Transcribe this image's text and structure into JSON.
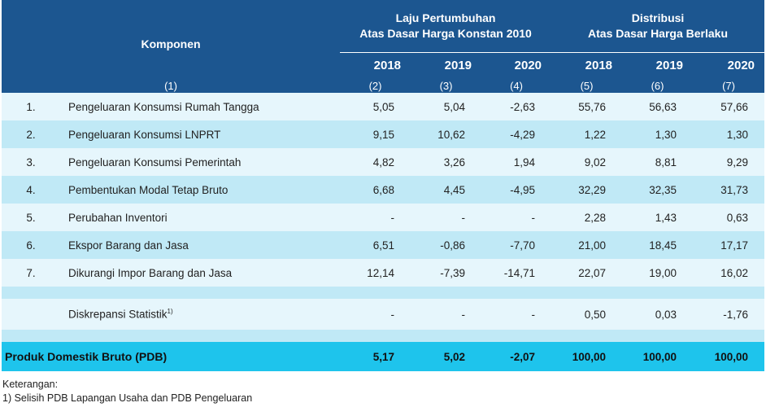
{
  "header": {
    "component": "Komponen",
    "group1_line1": "Laju Pertumbuhan",
    "group1_line2": "Atas Dasar Harga Konstan 2010",
    "group2_line1": "Distribusi",
    "group2_line2": "Atas Dasar Harga Berlaku",
    "years": [
      "2018",
      "2019",
      "2020",
      "2018",
      "2019",
      "2020"
    ],
    "col_numbers": [
      "(1)",
      "(2)",
      "(3)",
      "(4)",
      "(5)",
      "(6)",
      "(7)"
    ]
  },
  "rows": [
    {
      "no": "1.",
      "label": "Pengeluaran Konsumsi Rumah Tangga",
      "values": [
        "5,05",
        "5,04",
        "-2,63",
        "55,76",
        "56,63",
        "57,66"
      ]
    },
    {
      "no": "2.",
      "label": "Pengeluaran Konsumsi LNPRT",
      "values": [
        "9,15",
        "10,62",
        "-4,29",
        "1,22",
        "1,30",
        "1,30"
      ]
    },
    {
      "no": "3.",
      "label": "Pengeluaran Konsumsi Pemerintah",
      "values": [
        "4,82",
        "3,26",
        "1,94",
        "9,02",
        "8,81",
        "9,29"
      ]
    },
    {
      "no": "4.",
      "label": "Pembentukan Modal Tetap Bruto",
      "values": [
        "6,68",
        "4,45",
        "-4,95",
        "32,29",
        "32,35",
        "31,73"
      ]
    },
    {
      "no": "5.",
      "label": "Perubahan Inventori",
      "values": [
        "-",
        "-",
        "-",
        "2,28",
        "1,43",
        "0,63"
      ]
    },
    {
      "no": "6.",
      "label": "Ekspor Barang dan Jasa",
      "values": [
        "6,51",
        "-0,86",
        "-7,70",
        "21,00",
        "18,45",
        "17,17"
      ]
    },
    {
      "no": "7.",
      "label": "Dikurangi Impor Barang dan Jasa",
      "values": [
        "12,14",
        "-7,39",
        "-14,71",
        "22,07",
        "19,00",
        "16,02"
      ]
    }
  ],
  "discrepancy": {
    "label": "Diskrepansi Statistik",
    "superscript": "1)",
    "values": [
      "-",
      "-",
      "-",
      "0,50",
      "0,03",
      "-1,76"
    ]
  },
  "total": {
    "label": "Produk Domestik Bruto (PDB)",
    "values": [
      "5,17",
      "5,02",
      "-2,07",
      "100,00",
      "100,00",
      "100,00"
    ]
  },
  "notes": {
    "title": "Keterangan:",
    "line1": "1) Selisih PDB Lapangan Usaha dan PDB Pengeluaran"
  },
  "colors": {
    "header_bg": "#1c5690",
    "row_light": "#e6f6fc",
    "row_dark": "#c0e9f6",
    "total_bg": "#1ec4ec"
  }
}
